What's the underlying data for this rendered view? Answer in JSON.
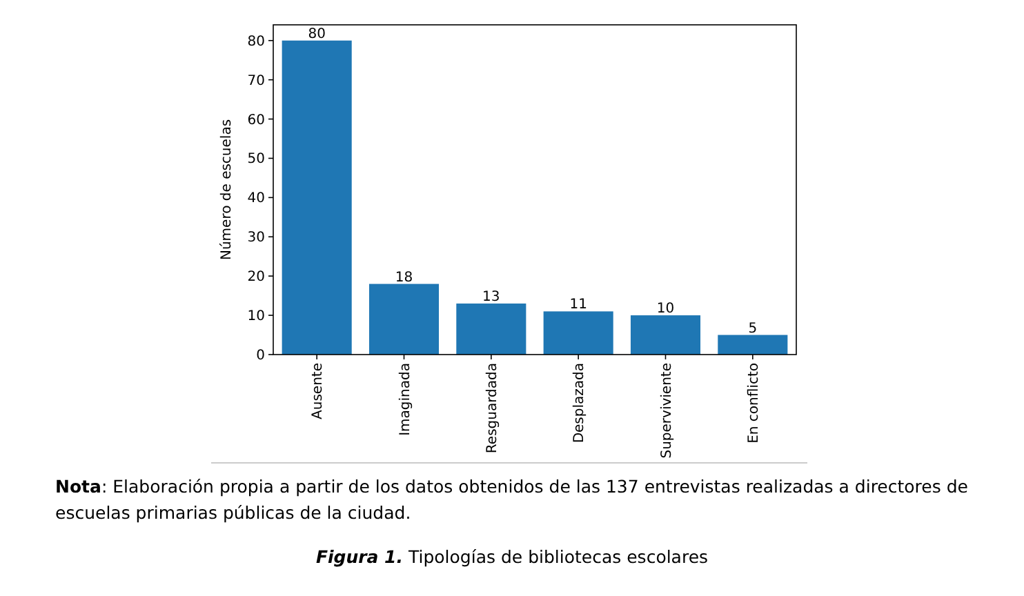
{
  "chart_data": {
    "type": "bar",
    "title": "Figura 1. Tipologías de bibliotecas escolares",
    "ylabel": "Número de escuelas",
    "categories": [
      "Ausente",
      "Imaginada",
      "Resguardada",
      "Desplazada",
      "Superviviente",
      "En conflicto"
    ],
    "values": [
      80,
      18,
      13,
      11,
      10,
      5
    ],
    "color": "#1f77b4",
    "ylim": [
      0,
      84
    ],
    "yticks": [
      0,
      10,
      20,
      30,
      40,
      50,
      60,
      70,
      80
    ],
    "grid": false,
    "data_labels": true,
    "annotations": [
      "Nota: Elaboración propia a partir de los datos obtenidos de las 137 entrevistas realizadas a directores de escuelas primarias públicas de la ciudad."
    ]
  }
}
